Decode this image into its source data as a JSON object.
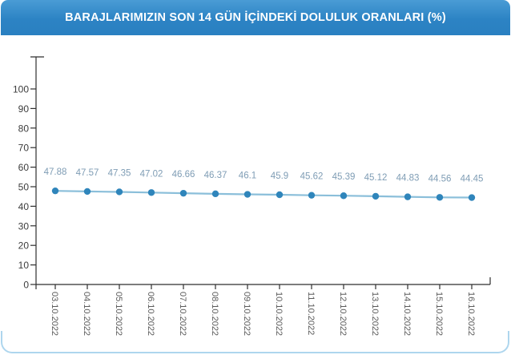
{
  "header": {
    "title": "BARAJLARIMIZIN SON 14 GÜN İÇİNDEKİ DOLULUK ORANLARI (%)",
    "background_color": "#2b82c3",
    "text_color": "#ffffff"
  },
  "chart_data": {
    "type": "line",
    "title": "BARAJLARIMIZIN SON 14 GÜN İÇİNDEKİ DOLULUK ORANLARI (%)",
    "xlabel": "",
    "ylabel": "",
    "categories": [
      "03.10.2022",
      "04.10.2022",
      "05.10.2022",
      "06.10.2022",
      "07.10.2022",
      "08.10.2022",
      "09.10.2022",
      "10.10.2022",
      "11.10.2022",
      "12.10.2022",
      "13.10.2022",
      "14.10.2022",
      "15.10.2022",
      "16.10.2022"
    ],
    "values": [
      47.88,
      47.57,
      47.35,
      47.02,
      46.66,
      46.37,
      46.1,
      45.9,
      45.62,
      45.39,
      45.12,
      44.83,
      44.56,
      44.45
    ],
    "value_labels": [
      "47.88",
      "47.57",
      "47.35",
      "47.02",
      "46.66",
      "46.37",
      "46.1",
      "45.9",
      "45.62",
      "45.39",
      "45.12",
      "44.83",
      "44.56",
      "44.45"
    ],
    "yticks": [
      0,
      10,
      20,
      30,
      40,
      50,
      60,
      70,
      80,
      90,
      100
    ],
    "ylim": [
      0,
      116
    ],
    "grid": false,
    "legend": "none",
    "colors": {
      "line": "#8bbfda",
      "point": "#2f85bb",
      "value_label": "#7f9db5",
      "axis": "#2f2f2f",
      "ytick_label": "#3c3c3c",
      "date_label": "#5a5a5a"
    }
  }
}
